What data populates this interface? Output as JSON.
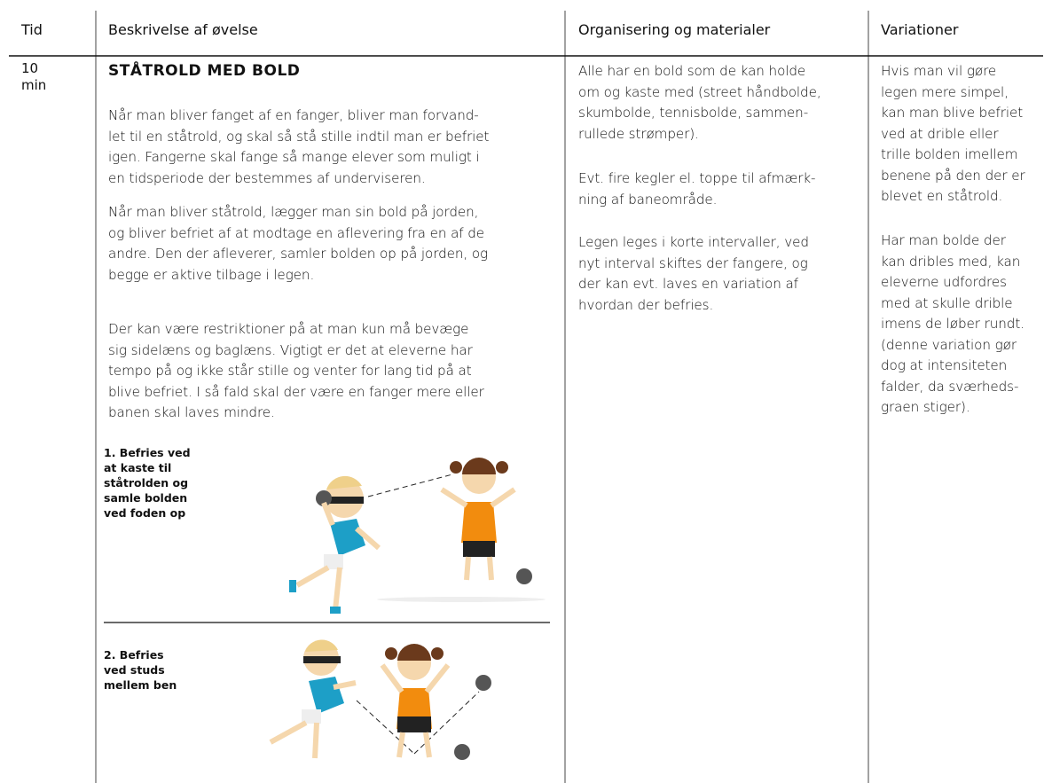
{
  "table": {
    "headers": [
      "Tid",
      "Beskrivelse af øvelse",
      "Organisering og materialer",
      "Variationer"
    ],
    "rows": [
      {
        "time": [
          "10",
          "min"
        ],
        "description": {
          "title": "STÅTROLD MED BOLD",
          "paragraphs": [
            [
              "Når man bliver fanget af en fanger, bliver man forvand-",
              "let til en ståtrold, og skal så stå stille indtil man er befriet",
              "igen. Fangerne skal fange så mange elever som muligt i",
              "en tidsperiode der bestemmes af underviseren."
            ],
            [
              "Når man bliver ståtrold, lægger man sin bold på jorden,",
              "og bliver befriet af at modtage en aflevering fra en af de",
              "andre. Den der afleverer, samler bolden op på jorden, og",
              "begge er aktive tilbage i legen."
            ],
            [
              "Der kan være restriktioner på at man kun må bevæge",
              "sig sidelæns og baglæns. Vigtigt er det at eleverne har",
              "tempo på og ikke står stille og venter for lang tid på at",
              "blive befriet. I så fald skal der være en fanger mere eller",
              "banen skal laves mindre."
            ]
          ],
          "illustrations": [
            {
              "caption": [
                "1. Befries ved",
                "at kaste til",
                "ståtrolden og",
                "samle bolden",
                "ved foden op"
              ]
            },
            {
              "caption": [
                "2. Befries",
                "ved studs",
                "mellem ben"
              ]
            }
          ]
        },
        "organisation": [
          [
            "Alle har en bold som de kan holde",
            "om og kaste med (street håndbolde,",
            "skumbolde, tennisbolde, sammen-",
            "rullede strømper)."
          ],
          [
            "Evt. fire kegler el. toppe til afmærk-",
            "ning af baneområde."
          ],
          [
            "Legen leges i korte intervaller, ved",
            "nyt interval skiftes der fangere, og",
            "der kan evt. laves en variation af",
            "hvordan der befries."
          ]
        ],
        "variations": [
          [
            "Hvis man vil gøre",
            "legen mere simpel,",
            "kan man blive befriet",
            "ved at drible eller",
            "trille bolden imellem",
            "benene på den der er",
            "blevet en ståtrold."
          ],
          [
            "Har man bolde der",
            "kan dribles med, kan",
            "eleverne udfordres",
            "med at skulle drible",
            "imens de løber rundt.",
            "(denne variation gør",
            "dog at intensiteten",
            "falder, da sværheds-",
            "graen stiger)."
          ]
        ]
      }
    ]
  }
}
